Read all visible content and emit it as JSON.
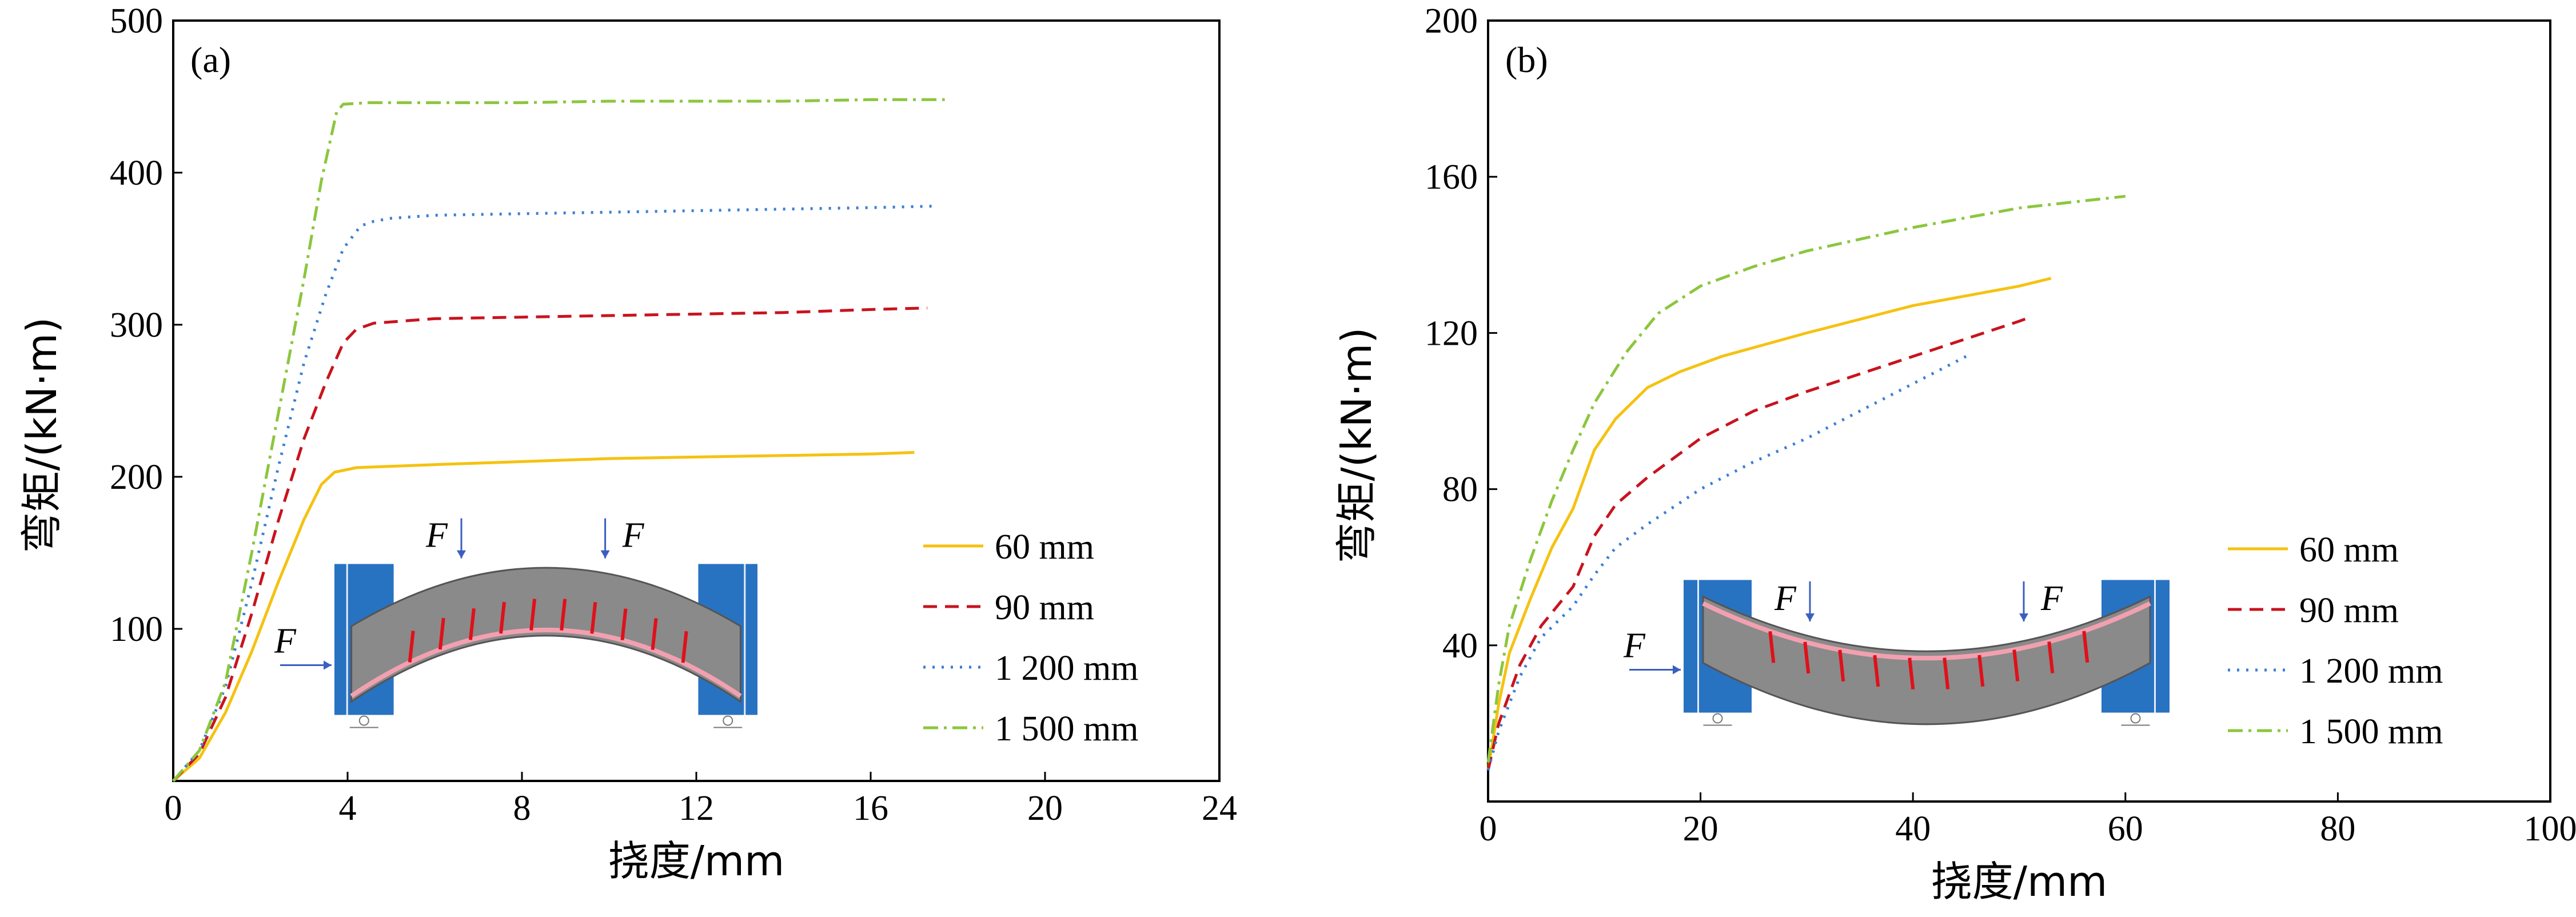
{
  "chart_data": [
    {
      "type": "line",
      "panel_label": "(a)",
      "xlabel": "挠度/mm",
      "ylabel": "弯矩/(kN·m)",
      "xlim": [
        0,
        24
      ],
      "ylim": [
        0,
        500
      ],
      "x_ticks": [
        0,
        4,
        8,
        12,
        16,
        20,
        24
      ],
      "y_ticks": [
        0,
        100,
        200,
        300,
        400,
        500
      ],
      "grid": false,
      "legend_position": "bottom-right",
      "inset_force_label": "F",
      "series": [
        {
          "name": "60 mm",
          "color": "#f5c211",
          "dash": "solid",
          "x": [
            0,
            0.6,
            1.2,
            1.8,
            2.4,
            3.0,
            3.4,
            3.7,
            4.2,
            6,
            8,
            10,
            12,
            14,
            16,
            17
          ],
          "y": [
            0,
            15,
            45,
            85,
            130,
            172,
            195,
            203,
            206,
            208,
            210,
            212,
            213,
            214,
            215,
            216
          ]
        },
        {
          "name": "90 mm",
          "color": "#c8141e",
          "dash": "dashed",
          "x": [
            0,
            0.6,
            1.2,
            1.8,
            2.4,
            3.0,
            3.5,
            3.9,
            4.2,
            4.6,
            6,
            8,
            10,
            12,
            14,
            16,
            17.3
          ],
          "y": [
            0,
            18,
            55,
            110,
            170,
            225,
            262,
            288,
            297,
            301,
            304,
            305,
            306,
            307,
            308,
            310,
            311
          ]
        },
        {
          "name": "1 200 mm",
          "color": "#3a7fd5",
          "dash": "dotted",
          "x": [
            0,
            0.6,
            1.2,
            1.8,
            2.4,
            3.0,
            3.5,
            3.9,
            4.3,
            4.6,
            5,
            6,
            8,
            10,
            12,
            14,
            16,
            17.5
          ],
          "y": [
            0,
            20,
            62,
            130,
            205,
            275,
            320,
            350,
            365,
            368,
            370,
            372,
            373,
            374,
            375,
            376,
            377,
            378
          ]
        },
        {
          "name": "1 500 mm",
          "color": "#8cc63e",
          "dash": "dashdot",
          "x": [
            0,
            0.6,
            1.2,
            1.8,
            2.4,
            3.0,
            3.4,
            3.75,
            3.9,
            4.5,
            6,
            8,
            10,
            12,
            14,
            16,
            17.7
          ],
          "y": [
            0,
            20,
            65,
            150,
            240,
            330,
            395,
            440,
            445,
            446,
            446,
            446,
            447,
            447,
            447,
            448,
            448
          ]
        }
      ]
    },
    {
      "type": "line",
      "panel_label": "(b)",
      "xlabel": "挠度/mm",
      "ylabel": "弯矩/(kN·m)",
      "xlim": [
        0,
        100
      ],
      "ylim": [
        0,
        200
      ],
      "x_ticks": [
        0,
        20,
        40,
        60,
        80,
        100
      ],
      "y_ticks": [
        0,
        40,
        80,
        120,
        160,
        200
      ],
      "grid": false,
      "legend_position": "bottom-right",
      "inset_force_label": "F",
      "series": [
        {
          "name": "60 mm",
          "color": "#f5c211",
          "dash": "solid",
          "x": [
            0,
            1,
            2,
            4,
            6,
            8,
            10,
            12,
            15,
            18,
            22,
            30,
            40,
            50,
            53
          ],
          "y": [
            8,
            25,
            38,
            52,
            65,
            75,
            90,
            98,
            106,
            110,
            114,
            120,
            127,
            132,
            134
          ]
        },
        {
          "name": "90 mm",
          "color": "#c8141e",
          "dash": "dashed",
          "x": [
            0,
            1,
            3,
            5,
            8,
            10,
            12,
            15,
            20,
            25,
            30,
            40,
            50,
            51
          ],
          "y": [
            8,
            20,
            35,
            45,
            55,
            68,
            76,
            83,
            93,
            100,
            105,
            114,
            123,
            124
          ]
        },
        {
          "name": "1 200 mm",
          "color": "#3a7fd5",
          "dash": "dotted",
          "x": [
            0,
            1,
            3,
            5,
            8,
            10,
            12,
            15,
            20,
            25,
            30,
            35,
            40,
            45
          ],
          "y": [
            8,
            18,
            32,
            42,
            50,
            58,
            65,
            71,
            80,
            87,
            93,
            100,
            107,
            114
          ]
        },
        {
          "name": "1 500 mm",
          "color": "#8cc63e",
          "dash": "dashdot",
          "x": [
            0,
            1,
            2,
            4,
            6,
            8,
            10,
            13,
            16,
            20,
            25,
            30,
            40,
            50,
            60
          ],
          "y": [
            10,
            30,
            45,
            62,
            77,
            90,
            102,
            115,
            125,
            132,
            137,
            141,
            147,
            152,
            155
          ]
        }
      ]
    }
  ]
}
